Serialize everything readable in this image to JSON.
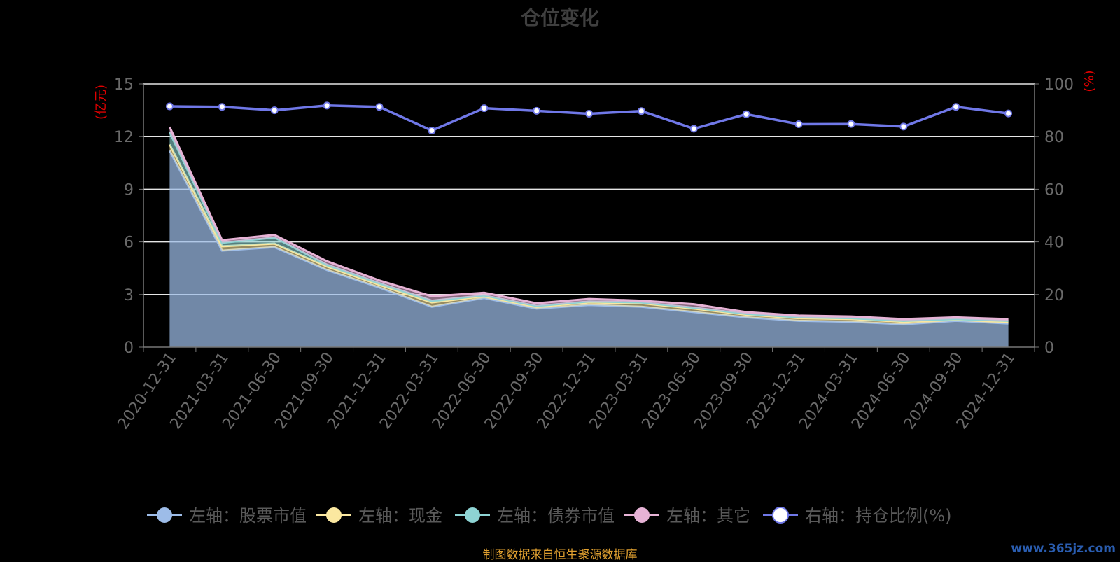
{
  "chart_data": {
    "type": "area",
    "title": "仓位变化",
    "categories": [
      "2020-12-31",
      "2021-03-31",
      "2021-06-30",
      "2021-09-30",
      "2021-12-31",
      "2022-03-31",
      "2022-06-30",
      "2022-09-30",
      "2022-12-31",
      "2023-03-31",
      "2023-06-30",
      "2023-09-30",
      "2023-12-31",
      "2024-03-31",
      "2024-06-30",
      "2024-09-30",
      "2024-12-31"
    ],
    "left_axis": {
      "label": "(亿元)",
      "ylim": [
        0,
        15
      ],
      "ticks": [
        "0",
        "3",
        "6",
        "9",
        "12",
        "15"
      ]
    },
    "right_axis": {
      "label": "(%)",
      "ylim": [
        0,
        100
      ],
      "ticks": [
        "0",
        "20",
        "40",
        "60",
        "80",
        "100"
      ]
    },
    "series": [
      {
        "name": "左轴：股票市值",
        "axis": "left",
        "color": "#9dbce8",
        "values": [
          11.2,
          5.5,
          5.7,
          4.4,
          3.4,
          2.3,
          2.8,
          2.2,
          2.4,
          2.3,
          2.0,
          1.7,
          1.5,
          1.45,
          1.3,
          1.5,
          1.35
        ]
      },
      {
        "name": "左轴：现金",
        "axis": "left",
        "color": "#fbe8a0",
        "values": [
          0.35,
          0.25,
          0.2,
          0.2,
          0.15,
          0.25,
          0.1,
          0.1,
          0.15,
          0.2,
          0.2,
          0.15,
          0.15,
          0.15,
          0.15,
          0.05,
          0.1
        ]
      },
      {
        "name": "左轴：债券市值",
        "axis": "left",
        "color": "#8ed4d4",
        "values": [
          0.7,
          0.2,
          0.35,
          0.1,
          0.1,
          0.1,
          0.05,
          0.05,
          0.05,
          0.05,
          0.05,
          0.05,
          0.05,
          0.05,
          0.05,
          0.05,
          0.05
        ]
      },
      {
        "name": "左轴：其它",
        "axis": "left",
        "color": "#e7b3d6",
        "values": [
          0.3,
          0.15,
          0.15,
          0.2,
          0.15,
          0.25,
          0.15,
          0.15,
          0.15,
          0.1,
          0.2,
          0.1,
          0.1,
          0.1,
          0.1,
          0.1,
          0.1
        ]
      },
      {
        "name": "右轴：持仓比例(%)",
        "axis": "right",
        "color": "#7078e8",
        "values": [
          91.5,
          91.3,
          90.0,
          91.8,
          91.3,
          82.3,
          90.8,
          89.8,
          88.7,
          89.7,
          83.0,
          88.5,
          84.7,
          84.8,
          83.8,
          91.3,
          88.8
        ]
      }
    ],
    "grid": true,
    "legend_position": "bottom"
  },
  "footer": {
    "source": "制图数据来自恒生聚源数据库",
    "watermark": "www.365jz.com"
  }
}
